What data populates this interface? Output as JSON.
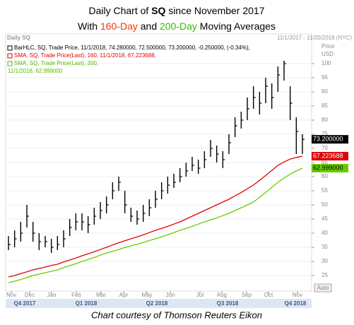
{
  "chart_data": {
    "type": "ohlc",
    "title_parts": [
      "Daily Chart of ",
      "SQ",
      " since November 2017"
    ],
    "subtitle_parts": [
      "With ",
      "160-Day",
      " and ",
      "200-Day",
      " Moving Averages"
    ],
    "subtitle_colors": [
      null,
      "#ff3300",
      null,
      "#33bb00",
      null
    ],
    "panel_name": "Daily SQ",
    "date_range": "11/1/2017 - 11/20/2018 (NYC)",
    "axis_label": [
      "Price",
      "USD"
    ],
    "legend": [
      {
        "text": "BarHLC, SQ, Trade Price, 11/1/2018, 74.280000, 72.500000, 73.200000, -0.250000, (-0.34%),",
        "color": "#000000"
      },
      {
        "text": "SMA, SQ, Trade Price(Last), 160, 11/1/2018, 67.223688,",
        "color": "#e00000"
      },
      {
        "text": "SMA, SQ, Trade Price(Last), 200,",
        "color": "#55bb00"
      },
      {
        "text": "11/1/2018, 62.999000",
        "color": "#55bb00"
      }
    ],
    "price_tags": [
      {
        "value": 73.2,
        "label": "73.200000",
        "color": "#000000",
        "text_color": "#ffffff"
      },
      {
        "value": 67.223688,
        "label": "67.223688",
        "color": "#e00000",
        "text_color": "#ffffff"
      },
      {
        "value": 62.999,
        "label": "62.999000",
        "color": "#66cc00",
        "text_color": "#000000"
      }
    ],
    "auto_label": "Auto",
    "ylim": [
      22,
      107
    ],
    "yticks": [
      25,
      30,
      35,
      40,
      45,
      50,
      55,
      60,
      65,
      70,
      75,
      80,
      85,
      90,
      95,
      100
    ],
    "months": [
      "Nov",
      "Dec",
      "Jan",
      "Feb",
      "Mar",
      "Apr",
      "May",
      "Jun",
      "Jul",
      "Aug",
      "Sep",
      "Oct",
      "Nov"
    ],
    "quarters": [
      "Q4 2017",
      "Q1 2018",
      "Q2 2018",
      "Q3 2018",
      "Q4 2018"
    ],
    "series": [
      {
        "type": "ohlc",
        "color": "#000000",
        "high": [
          39,
          41,
          44,
          50,
          44,
          40,
          39,
          38,
          39,
          41,
          45,
          47,
          47,
          46,
          49,
          51,
          53,
          58,
          60,
          55,
          49,
          48,
          50,
          52,
          55,
          58,
          60,
          61,
          63,
          65,
          67,
          66,
          69,
          73,
          71,
          69,
          75,
          81,
          83,
          88,
          92,
          90,
          95,
          93,
          99,
          101,
          92,
          81,
          75
        ],
        "low": [
          34,
          35,
          37,
          42,
          37,
          34,
          35,
          33,
          34,
          35,
          39,
          41,
          41,
          40,
          43,
          45,
          47,
          52,
          55,
          47,
          44,
          43,
          44,
          46,
          49,
          52,
          54,
          56,
          58,
          60,
          62,
          61,
          63,
          67,
          65,
          63,
          68,
          74,
          77,
          80,
          84,
          82,
          86,
          84,
          90,
          94,
          80,
          68,
          68
        ],
        "close": [
          36,
          38,
          40,
          46,
          40,
          37,
          37,
          35,
          36,
          38,
          42,
          44,
          44,
          43,
          46,
          48,
          50,
          55,
          58,
          50,
          46,
          45,
          47,
          49,
          52,
          55,
          57,
          58,
          60,
          62,
          64,
          63,
          66,
          70,
          68,
          66,
          72,
          78,
          80,
          84,
          88,
          86,
          92,
          88,
          96,
          100,
          86,
          76,
          73.2
        ]
      },
      {
        "type": "line",
        "color": "#e00000",
        "values": [
          24.5,
          25,
          25.7,
          26.3,
          27,
          27.5,
          28,
          28.6,
          29,
          29.8,
          30.5,
          31.2,
          32,
          32.7,
          33.4,
          34.2,
          35,
          35.8,
          36.6,
          37.3,
          38,
          38.7,
          39.4,
          40.2,
          41,
          41.7,
          42.4,
          43.2,
          44,
          45,
          46,
          47,
          48,
          49,
          50,
          51,
          52,
          53.2,
          54.4,
          55.7,
          57,
          58.7,
          60.4,
          62.2,
          64,
          65.2,
          66.2,
          66.8,
          67.223688
        ]
      },
      {
        "type": "line",
        "color": "#66cc00",
        "values": [
          22.5,
          23,
          23.6,
          24.3,
          25,
          25.5,
          26,
          26.5,
          27,
          27.8,
          28.5,
          29.2,
          30,
          30.7,
          31.4,
          32.2,
          33,
          33.6,
          34.2,
          34.9,
          35.5,
          36.1,
          36.7,
          37.4,
          38,
          38.7,
          39.4,
          40.2,
          41,
          41.7,
          42.4,
          43.2,
          44,
          44.7,
          45.4,
          46.2,
          47,
          48,
          49,
          50,
          51,
          52.7,
          54.4,
          56.2,
          58,
          59.5,
          60.9,
          62,
          62.999
        ]
      }
    ],
    "footer": "Chart courtesy of Thomson Reuters Eikon"
  }
}
